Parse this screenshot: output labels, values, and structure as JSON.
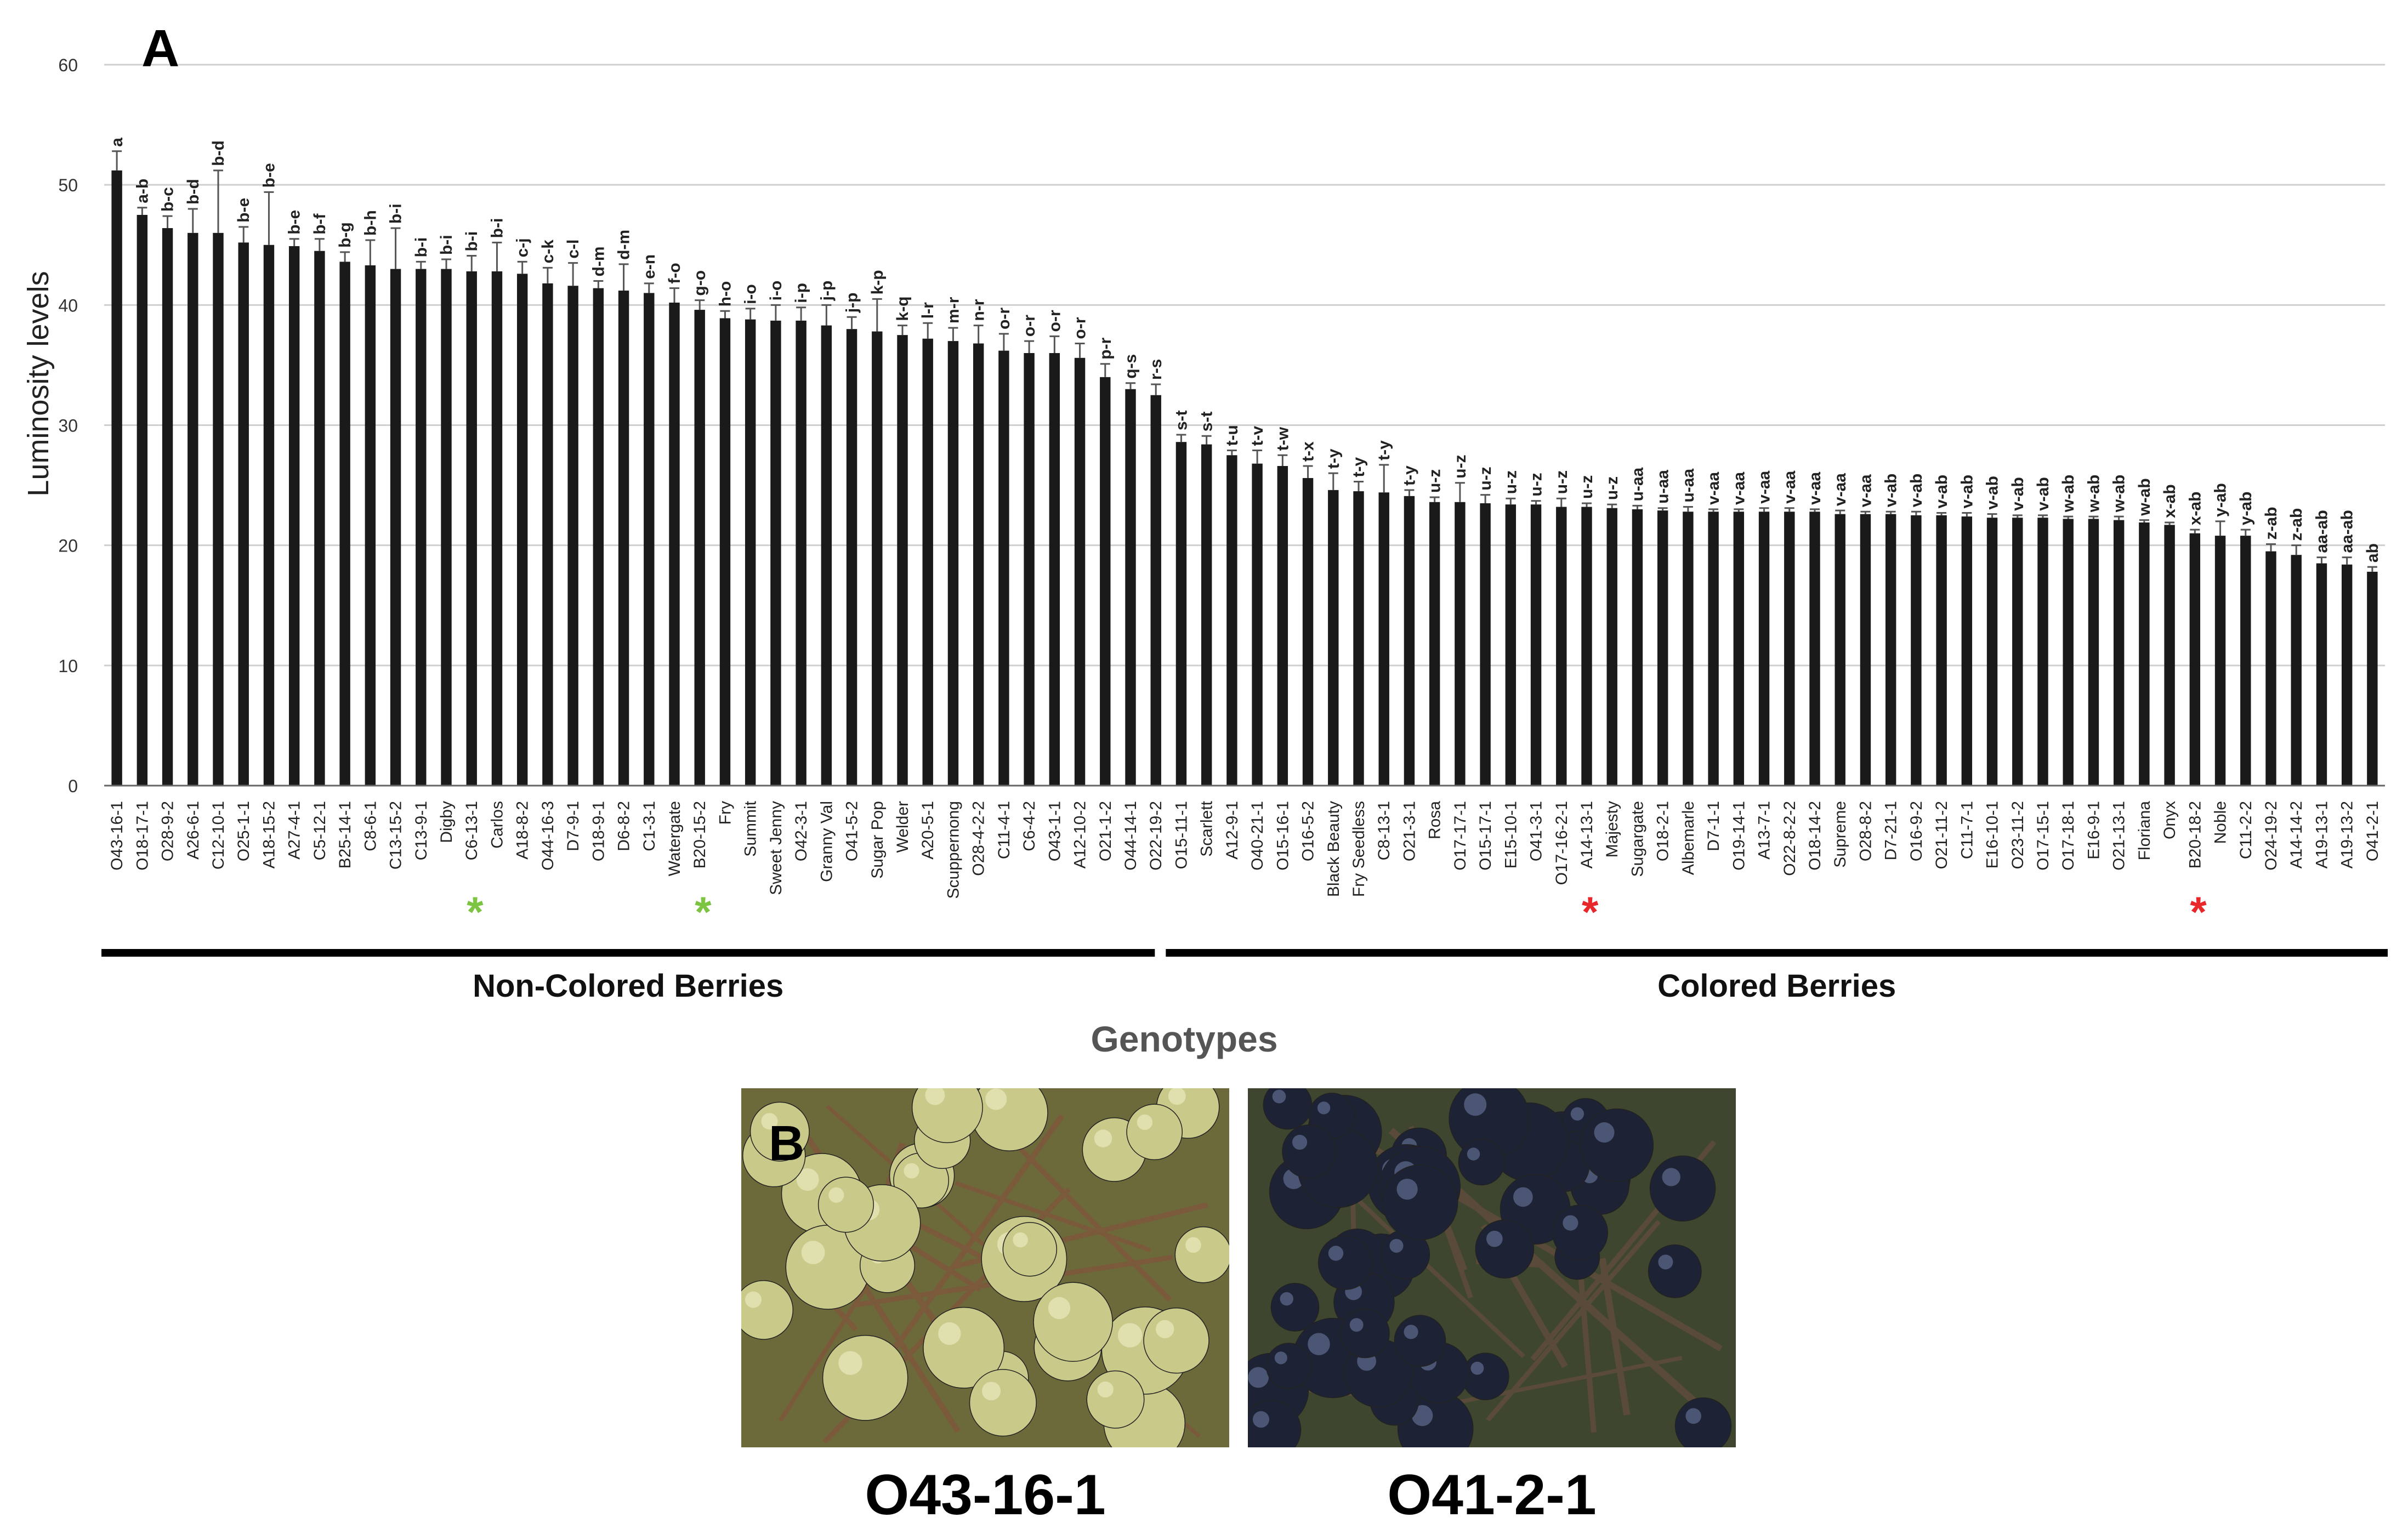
{
  "panel_a_label": "A",
  "panel_b_label": "B",
  "chart_data": {
    "type": "bar",
    "title": "",
    "xlabel": "Genotypes",
    "ylabel": "Luminosity levels",
    "ylim": [
      0,
      60
    ],
    "yticks": [
      0,
      10,
      20,
      30,
      40,
      50,
      60
    ],
    "grid": true,
    "error_bars": true,
    "bar_color": "#1a1a1a",
    "categories": [
      "O43-16-1",
      "O18-17-1",
      "O28-9-2",
      "A26-6-1",
      "C12-10-1",
      "O25-1-1",
      "A18-15-2",
      "A27-4-1",
      "C5-12-1",
      "B25-14-1",
      "C8-6-1",
      "C13-15-2",
      "C13-9-1",
      "Digby",
      "C6-13-1",
      "Carlos",
      "A18-8-2",
      "O44-16-3",
      "D7-9-1",
      "O18-9-1",
      "D6-8-2",
      "C1-3-1",
      "Watergate",
      "B20-15-2",
      "Fry",
      "Summit",
      "Sweet Jenny",
      "O42-3-1",
      "Granny Val",
      "O41-5-2",
      "Sugar Pop",
      "Welder",
      "A20-5-1",
      "Scuppernong",
      "O28-4-2-2",
      "C11-4-1",
      "C6-4-2",
      "O43-1-1",
      "A12-10-2",
      "O21-1-2",
      "O44-14-1",
      "O22-19-2",
      "O15-11-1",
      "Scarlett",
      "A12-9-1",
      "O40-21-1",
      "O15-16-1",
      "O16-5-2",
      "Black Beauty",
      "Fry Seedless",
      "C8-13-1",
      "O21-3-1",
      "Rosa",
      "O17-17-1",
      "O15-17-1",
      "E15-10-1",
      "O41-3-1",
      "O17-16-2-1",
      "A14-13-1",
      "Majesty",
      "Sugargate",
      "O18-2-1",
      "Albemarle",
      "D7-1-1",
      "O19-14-1",
      "A13-7-1",
      "O22-8-2-2",
      "O18-14-2",
      "Supreme",
      "O28-8-2",
      "D7-21-1",
      "O16-9-2",
      "O21-11-2",
      "C11-7-1",
      "E16-10-1",
      "O23-11-2",
      "O17-15-1",
      "O17-18-1",
      "E16-9-1",
      "O21-13-1",
      "Floriana",
      "Onyx",
      "B20-18-2",
      "Noble",
      "C11-2-2",
      "O24-19-2",
      "A14-14-2",
      "A19-13-1",
      "A19-13-2",
      "O41-2-1"
    ],
    "values": [
      51.2,
      47.5,
      46.4,
      46.0,
      46.0,
      45.2,
      45.0,
      44.9,
      44.5,
      43.6,
      43.3,
      43.0,
      43.0,
      43.0,
      42.8,
      42.8,
      42.6,
      41.8,
      41.6,
      41.4,
      41.2,
      41.0,
      40.2,
      39.6,
      38.9,
      38.8,
      38.7,
      38.7,
      38.3,
      38.0,
      37.8,
      37.5,
      37.2,
      37.0,
      36.8,
      36.2,
      36.0,
      36.0,
      35.6,
      34.0,
      33.0,
      32.5,
      28.6,
      28.4,
      27.5,
      26.8,
      26.6,
      25.6,
      24.6,
      24.5,
      24.4,
      24.1,
      23.6,
      23.6,
      23.5,
      23.4,
      23.4,
      23.2,
      23.2,
      23.1,
      23.0,
      22.9,
      22.8,
      22.8,
      22.8,
      22.8,
      22.8,
      22.8,
      22.6,
      22.6,
      22.6,
      22.5,
      22.5,
      22.4,
      22.3,
      22.3,
      22.3,
      22.2,
      22.2,
      22.1,
      21.9,
      21.7,
      21.0,
      20.8,
      20.8,
      19.5,
      19.2,
      18.5,
      18.4,
      17.8
    ],
    "errors": [
      1.6,
      0.6,
      1.0,
      2.0,
      5.2,
      1.3,
      4.4,
      0.6,
      1.0,
      0.8,
      2.1,
      3.4,
      0.6,
      0.8,
      1.3,
      2.4,
      1.0,
      1.3,
      1.9,
      0.6,
      2.2,
      0.8,
      1.2,
      0.8,
      0.6,
      0.9,
      1.3,
      1.1,
      1.7,
      1.0,
      2.7,
      0.8,
      1.3,
      1.1,
      1.5,
      1.4,
      1.0,
      1.4,
      1.2,
      1.1,
      0.5,
      0.9,
      0.6,
      0.7,
      0.4,
      1.1,
      0.9,
      1.0,
      1.4,
      0.8,
      2.3,
      0.5,
      0.4,
      1.6,
      0.7,
      0.5,
      0.3,
      0.7,
      0.3,
      0.3,
      0.3,
      0.2,
      0.4,
      0.2,
      0.2,
      0.3,
      0.3,
      0.2,
      0.3,
      0.2,
      0.2,
      0.3,
      0.2,
      0.3,
      0.3,
      0.2,
      0.2,
      0.2,
      0.2,
      0.3,
      0.2,
      0.2,
      0.3,
      1.2,
      0.5,
      0.6,
      0.8,
      0.5,
      0.6,
      0.4
    ],
    "letters": [
      "a",
      "a-b",
      "b-c",
      "b-d",
      "b-d",
      "b-e",
      "b-e",
      "b-e",
      "b-f",
      "b-g",
      "b-h",
      "b-i",
      "b-i",
      "b-i",
      "b-i",
      "b-i",
      "c-j",
      "c-k",
      "c-l",
      "d-m",
      "d-m",
      "e-n",
      "f-o",
      "g-o",
      "h-o",
      "i-o",
      "i-o",
      "i-p",
      "j-p",
      "j-p",
      "k-p",
      "k-q",
      "l-r",
      "m-r",
      "n-r",
      "o-r",
      "o-r",
      "o-r",
      "o-r",
      "p-r",
      "q-s",
      "r-s",
      "s-t",
      "s-t",
      "t-u",
      "t-v",
      "t-w",
      "t-x",
      "t-y",
      "t-y",
      "t-y",
      "t-y",
      "u-z",
      "u-z",
      "u-z",
      "u-z",
      "u-z",
      "u-z",
      "u-z",
      "u-z",
      "u-aa",
      "u-aa",
      "u-aa",
      "v-aa",
      "v-aa",
      "v-aa",
      "v-aa",
      "v-aa",
      "v-aa",
      "v-aa",
      "v-ab",
      "v-ab",
      "v-ab",
      "v-ab",
      "v-ab",
      "v-ab",
      "v-ab",
      "w-ab",
      "w-ab",
      "w-ab",
      "w-ab",
      "x-ab",
      "x-ab",
      "y-ab",
      "y-ab",
      "z-ab",
      "z-ab",
      "aa-ab",
      "aa-ab",
      "ab"
    ],
    "star_marks": [
      {
        "category": "Carlos",
        "color": "#7dc443"
      },
      {
        "category": "Fry",
        "color": "#7dc443"
      },
      {
        "category": "Majesty",
        "color": "#e8272a"
      },
      {
        "category": "Noble",
        "color": "#e8272a"
      }
    ],
    "star_symbol": "*",
    "groups": [
      {
        "label": "Non-Colored Berries",
        "from": 0,
        "to": 41
      },
      {
        "label": "Colored Berries",
        "from": 42,
        "to": 89
      }
    ]
  },
  "photos": [
    {
      "caption": "O43-16-1",
      "berry_color": "#c9c98a",
      "highlight": "#eef0c4",
      "bg": "#6c6a3a"
    },
    {
      "caption": "O41-2-1",
      "berry_color": "#1d2235",
      "highlight": "#6a7aa0",
      "bg": "#3f4630"
    }
  ]
}
